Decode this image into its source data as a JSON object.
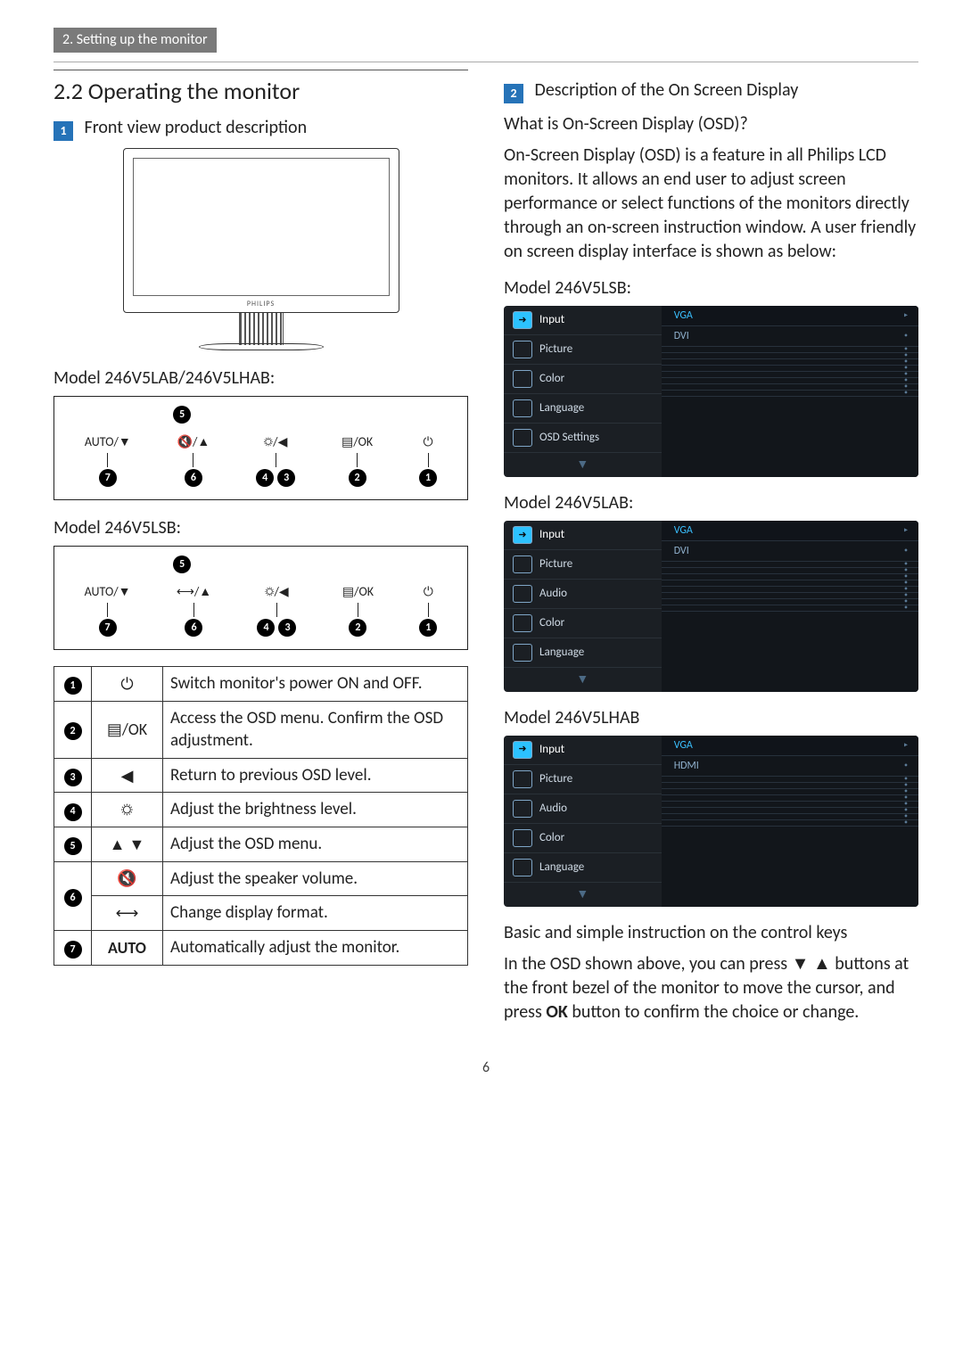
{
  "chapter_tab": "2. Setting up the monitor",
  "section_title": "2.2  Operating the monitor",
  "left": {
    "badge1_num": "1",
    "badge1_text": "Front view product description",
    "monitor_logo": "PHILIPS",
    "model_a": "Model 246V5LAB/246V5LHAB:",
    "model_b": "Model 246V5LSB:",
    "controls_a": [
      {
        "label": "AUTO/▼",
        "num": "7"
      },
      {
        "label": "🔇/▲",
        "num": "6"
      },
      {
        "label": "☼/◀",
        "num": "4",
        "num2": "3"
      },
      {
        "label": "▤/OK",
        "num": "2"
      },
      {
        "label": "⏻",
        "num": "1"
      }
    ],
    "controls_b": [
      {
        "label": "AUTO/▼",
        "num": "7"
      },
      {
        "label": "⟷/▲",
        "num": "6"
      },
      {
        "label": "☼/◀",
        "num": "4",
        "num2": "3"
      },
      {
        "label": "▤/OK",
        "num": "2"
      },
      {
        "label": "⏻",
        "num": "1"
      }
    ],
    "top_badge_num": "5",
    "func_rows": [
      {
        "n": "1",
        "icon": "⏻",
        "desc": "Switch monitor's power ON and OFF."
      },
      {
        "n": "2",
        "icon": "▤/OK",
        "desc": "Access the OSD menu. Confirm the OSD adjustment."
      },
      {
        "n": "3",
        "icon": "◀",
        "desc": "Return to previous OSD level."
      },
      {
        "n": "4",
        "icon": "☼",
        "desc": "Adjust the brightness level."
      },
      {
        "n": "5",
        "icon": "▲ ▼",
        "desc": "Adjust the OSD menu."
      },
      {
        "n": "6",
        "icon": "🔇",
        "desc": "Adjust the speaker volume."
      },
      {
        "n": "6b",
        "icon": "⟷",
        "desc": "Change display format."
      },
      {
        "n": "7",
        "icon": "AUTO",
        "desc": "Automatically adjust the monitor."
      }
    ]
  },
  "right": {
    "badge2_num": "2",
    "badge2_text": "Description of the On Screen Display",
    "q_heading": "What is On-Screen Display (OSD)?",
    "osd_intro": "On-Screen Display (OSD) is a feature in all Philips LCD monitors. It allows an end user to adjust screen performance or select functions of the monitors directly through an on-screen instruction window. A user friendly on screen display interface is shown as below:",
    "osd_models": [
      {
        "label": "Model 246V5LSB:",
        "menu": [
          "Input",
          "Picture",
          "Color",
          "Language",
          "OSD Settings"
        ],
        "opts": [
          "VGA",
          "DVI"
        ]
      },
      {
        "label": "Model 246V5LAB:",
        "menu": [
          "Input",
          "Picture",
          "Audio",
          "Color",
          "Language"
        ],
        "opts": [
          "VGA",
          "DVI"
        ]
      },
      {
        "label": "Model 246V5LHAB",
        "menu": [
          "Input",
          "Picture",
          "Audio",
          "Color",
          "Language"
        ],
        "opts": [
          "VGA",
          "HDMI"
        ]
      }
    ],
    "basic_heading": "Basic and simple instruction on the control keys",
    "basic_p1a": "In the OSD shown above, you can press ▼",
    "basic_p1b": "▲ buttons at the front bezel of the monitor to move the cursor, and press ",
    "basic_ok": "OK",
    "basic_p1c": " button to confirm the choice or change."
  },
  "page_number": "6",
  "colors": {
    "badge_bg": "#2673b8",
    "osd_bg": "#1b1f24",
    "osd_accent": "#2cc2ff"
  }
}
